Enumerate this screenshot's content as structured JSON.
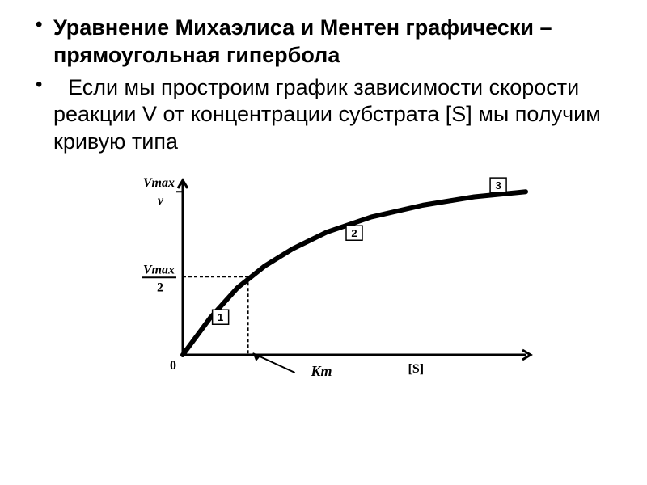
{
  "bullets": {
    "b1": "Уравнение Михаэлиса и Ментен графически – прямоугольная гипербола",
    "b2": "Если мы простроим график зависимости  скорости реакции  V от концентрации  субстрата [S] мы получим кривую типа"
  },
  "chart": {
    "type": "line",
    "axis_color": "#000000",
    "curve_color": "#000000",
    "background_color": "#ffffff",
    "curve_width": 6,
    "axis_width": 3,
    "tick_dash": "4 3",
    "y_labels": {
      "vmax": "Vmax",
      "v": "v",
      "vmax2_top": "Vmax",
      "vmax2_bot": "2"
    },
    "x_label": "[S]",
    "origin_label": "0",
    "km_label": "Km",
    "region_labels": {
      "r1": "1",
      "r2": "2",
      "r3": "3"
    },
    "curve_points": [
      {
        "x": 0.0,
        "y": 0.0
      },
      {
        "x": 0.08,
        "y": 0.22
      },
      {
        "x": 0.16,
        "y": 0.4
      },
      {
        "x": 0.24,
        "y": 0.53
      },
      {
        "x": 0.32,
        "y": 0.63
      },
      {
        "x": 0.42,
        "y": 0.73
      },
      {
        "x": 0.55,
        "y": 0.82
      },
      {
        "x": 0.7,
        "y": 0.89
      },
      {
        "x": 0.85,
        "y": 0.94
      },
      {
        "x": 1.0,
        "y": 0.97
      }
    ],
    "km_x": 0.19,
    "vmax2_y": 0.465,
    "vmax_y": 0.97,
    "xlim": [
      0,
      1
    ],
    "ylim": [
      0,
      1
    ],
    "label_fontsize": 16
  }
}
